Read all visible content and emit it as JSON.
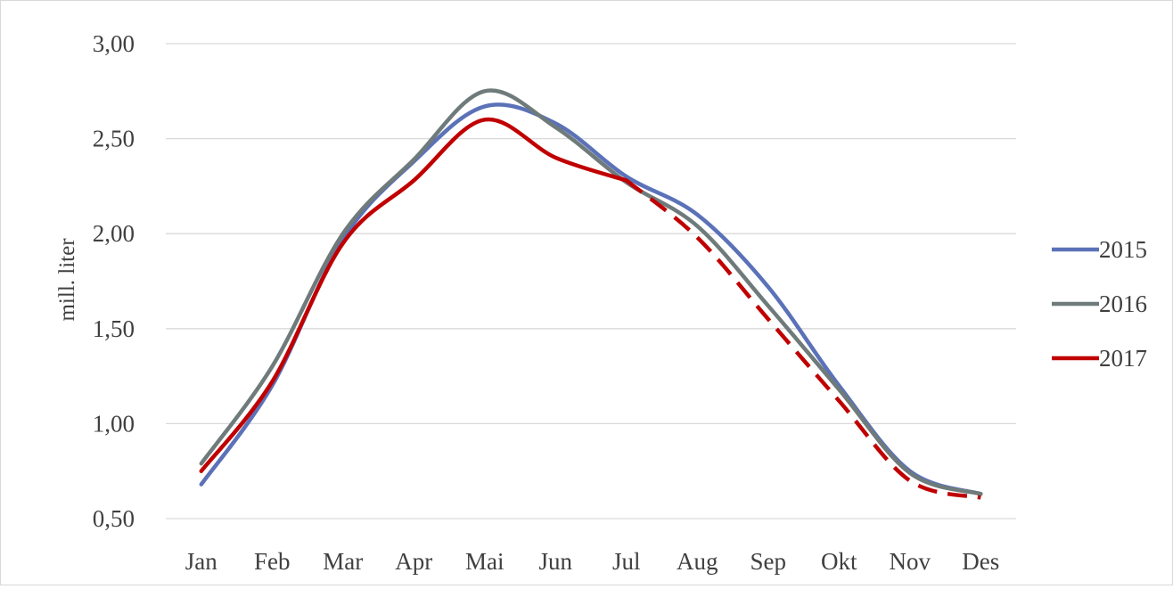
{
  "chart_data": {
    "type": "line",
    "title": "",
    "xlabel": "",
    "ylabel": "mill. liter",
    "categories": [
      "Jan",
      "Feb",
      "Mar",
      "Apr",
      "Mai",
      "Jun",
      "Jul",
      "Aug",
      "Sep",
      "Okt",
      "Nov",
      "Des"
    ],
    "ylim": [
      0.5,
      3.0
    ],
    "yticks": [
      {
        "value": 0.5,
        "label": "0,50"
      },
      {
        "value": 1.0,
        "label": "1,00"
      },
      {
        "value": 1.5,
        "label": "1,50"
      },
      {
        "value": 2.0,
        "label": "2,00"
      },
      {
        "value": 2.5,
        "label": "2,50"
      },
      {
        "value": 3.0,
        "label": "3,00"
      }
    ],
    "grid": true,
    "smooth": true,
    "legend_position": "right",
    "series": [
      {
        "name": "2015",
        "color": "#5b72b8",
        "style": "solid",
        "values": [
          0.68,
          1.2,
          1.97,
          2.38,
          2.67,
          2.58,
          2.3,
          2.1,
          1.72,
          1.2,
          0.75,
          0.63
        ]
      },
      {
        "name": "2016",
        "color": "#6f7a7a",
        "style": "solid",
        "values": [
          0.79,
          1.3,
          2.0,
          2.39,
          2.75,
          2.56,
          2.27,
          2.04,
          1.62,
          1.18,
          0.74,
          0.63
        ]
      },
      {
        "name": "2017",
        "color": "#c00000",
        "style": "solid",
        "dashed_from_index": 6,
        "values": [
          0.75,
          1.22,
          1.95,
          2.28,
          2.6,
          2.4,
          2.28,
          1.98,
          1.55,
          1.12,
          0.7,
          0.61
        ]
      }
    ]
  }
}
